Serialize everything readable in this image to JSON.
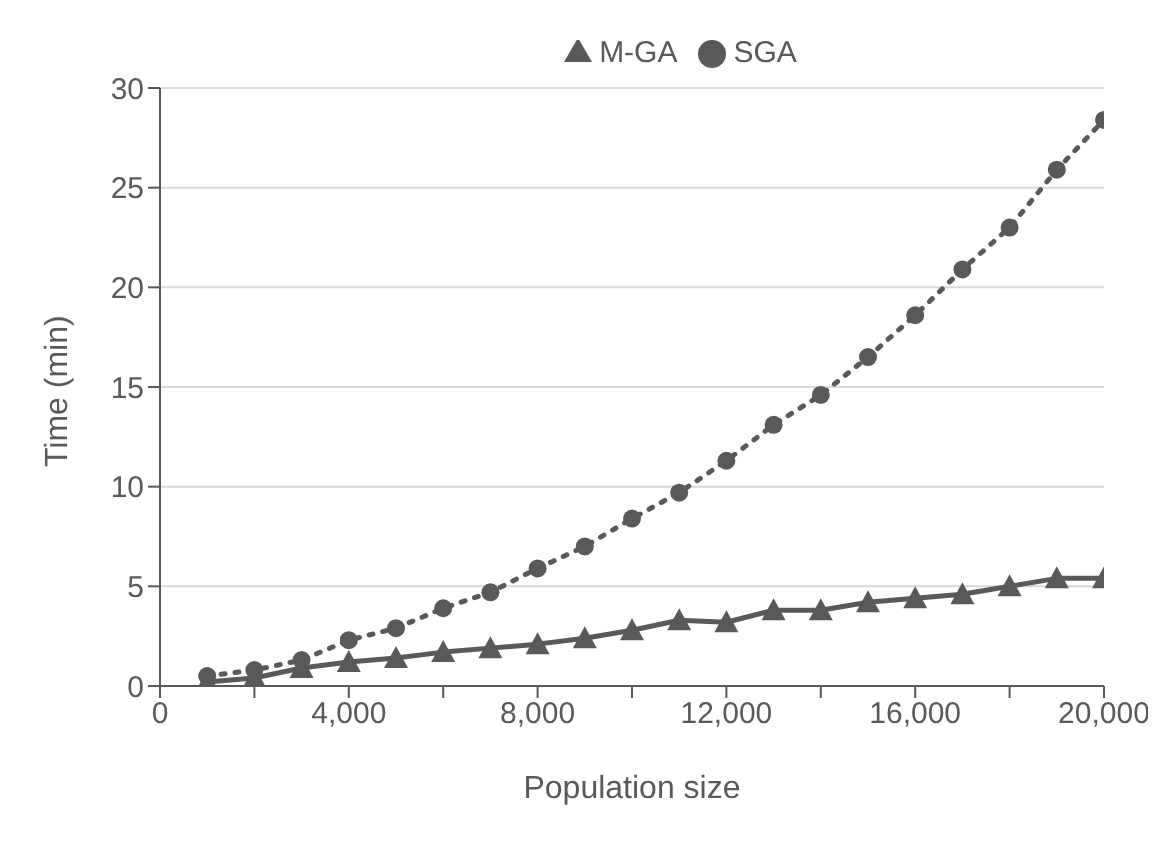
{
  "chart_data": {
    "type": "line",
    "xlabel": "Population size",
    "ylabel": "Time (min)",
    "x": [
      1000,
      2000,
      3000,
      4000,
      5000,
      6000,
      7000,
      8000,
      9000,
      10000,
      11000,
      12000,
      13000,
      14000,
      15000,
      16000,
      17000,
      18000,
      19000,
      20000
    ],
    "series": [
      {
        "name": "M-GA",
        "color": "#595959",
        "marker": "triangle",
        "line_style": "solid",
        "values": [
          0.2,
          0.4,
          0.9,
          1.2,
          1.4,
          1.7,
          1.9,
          2.1,
          2.4,
          2.8,
          3.3,
          3.2,
          3.8,
          3.8,
          4.2,
          4.4,
          4.6,
          5.0,
          5.4,
          5.4
        ]
      },
      {
        "name": "SGA",
        "color": "#595959",
        "marker": "circle",
        "line_style": "dotted",
        "values": [
          0.5,
          0.8,
          1.3,
          2.3,
          2.9,
          3.9,
          4.7,
          5.9,
          7.0,
          8.4,
          9.7,
          11.3,
          13.1,
          14.6,
          16.5,
          18.6,
          20.9,
          23.0,
          25.9,
          28.4
        ]
      }
    ],
    "xlim": [
      0,
      20000
    ],
    "xticks": [
      0,
      {
        "value": 2000,
        "label": null
      },
      {
        "value": 4000,
        "label": "4,000"
      },
      {
        "value": 6000,
        "label": null
      },
      {
        "value": 8000,
        "label": "8,000"
      },
      {
        "value": 10000,
        "label": null
      },
      {
        "value": 12000,
        "label": "12,000"
      },
      {
        "value": 14000,
        "label": null
      },
      {
        "value": 16000,
        "label": "16,000"
      },
      {
        "value": 18000,
        "label": null
      },
      {
        "value": 20000,
        "label": "20,000"
      }
    ],
    "ylim": [
      0,
      30
    ],
    "yticks": [
      0,
      5,
      10,
      15,
      20,
      25,
      30
    ],
    "grid": "y",
    "legend": "top"
  }
}
